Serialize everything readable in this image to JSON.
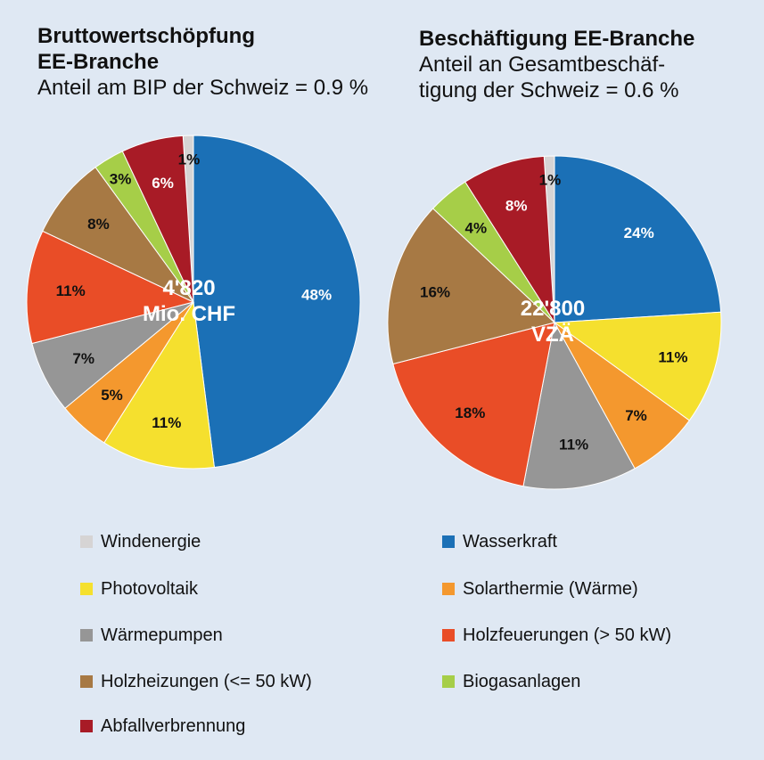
{
  "chart_data": [
    {
      "type": "pie",
      "title": "Bruttowertschöpfung EE-Branche",
      "title_lines": [
        "Bruttowertschöpfung",
        "EE-Branche"
      ],
      "subtitle": "Anteil am BIP der Schweiz = 0.9 %",
      "subtitle_lines": [
        "Anteil am BIP der Schweiz = 0.9 %"
      ],
      "center_label": [
        "4'820",
        "Mio. CHF"
      ],
      "slices": [
        {
          "category": "Windenergie",
          "value": 1,
          "label": "1%"
        },
        {
          "category": "Wasserkraft",
          "value": 48,
          "label": "48%"
        },
        {
          "category": "Photovoltaik",
          "value": 11,
          "label": "11%"
        },
        {
          "category": "Solarthermie (Wärme)",
          "value": 5,
          "label": "5%"
        },
        {
          "category": "Wärmepumpen",
          "value": 7,
          "label": "7%"
        },
        {
          "category": "Holzfeuerungen (> 50 kW)",
          "value": 11,
          "label": "11%"
        },
        {
          "category": "Holzheizungen (<= 50 kW)",
          "value": 8,
          "label": "8%"
        },
        {
          "category": "Biogasanlagen",
          "value": 3,
          "label": "3%"
        },
        {
          "category": "Abfallverbrennung",
          "value": 6,
          "label": "6%"
        }
      ]
    },
    {
      "type": "pie",
      "title": "Beschäftigung EE-Branche",
      "title_lines": [
        "Beschäftigung EE-Branche"
      ],
      "subtitle": "Anteil an Gesamtbeschäftigung der Schweiz = 0.6 %",
      "subtitle_lines": [
        "Anteil an Gesamtbeschäf-",
        "tigung der Schweiz = 0.6 %"
      ],
      "center_label": [
        "22'800",
        "VZÄ"
      ],
      "slices": [
        {
          "category": "Windenergie",
          "value": 1,
          "label": "1%"
        },
        {
          "category": "Wasserkraft",
          "value": 24,
          "label": "24%"
        },
        {
          "category": "Photovoltaik",
          "value": 11,
          "label": "11%"
        },
        {
          "category": "Solarthermie (Wärme)",
          "value": 7,
          "label": "7%"
        },
        {
          "category": "Wärmepumpen",
          "value": 11,
          "label": "11%"
        },
        {
          "category": "Holzfeuerungen (> 50 kW)",
          "value": 18,
          "label": "18%"
        },
        {
          "category": "Holzheizungen (<= 50 kW)",
          "value": 16,
          "label": "16%"
        },
        {
          "category": "Biogasanlagen",
          "value": 4,
          "label": "4%"
        },
        {
          "category": "Abfallverbrennung",
          "value": 8,
          "label": "8%"
        }
      ]
    }
  ],
  "legend": [
    {
      "label": "Windenergie",
      "color": "#d6d4d4"
    },
    {
      "label": "Wasserkraft",
      "color": "#1b70b6"
    },
    {
      "label": "Photovoltaik",
      "color": "#f5e02e"
    },
    {
      "label": "Solarthermie (Wärme)",
      "color": "#f4982e"
    },
    {
      "label": "Wärmepumpen",
      "color": "#969696"
    },
    {
      "label": "Holzfeuerungen (> 50 kW)",
      "color": "#e94d27"
    },
    {
      "label": "Holzheizungen (<= 50 kW)",
      "color": "#a77944"
    },
    {
      "label": "Biogasanlagen",
      "color": "#a6ce48"
    },
    {
      "label": "Abfallverbrennung",
      "color": "#a81b26"
    }
  ],
  "label_colors": {
    "Windenergie": "#111111",
    "Wasserkraft": "#ffffff",
    "Photovoltaik": "#111111",
    "Solarthermie (Wärme)": "#111111",
    "Wärmepumpen": "#111111",
    "Holzfeuerungen (> 50 kW)": "#111111",
    "Holzheizungen (<= 50 kW)": "#111111",
    "Biogasanlagen": "#111111",
    "Abfallverbrennung": "#ffffff"
  }
}
